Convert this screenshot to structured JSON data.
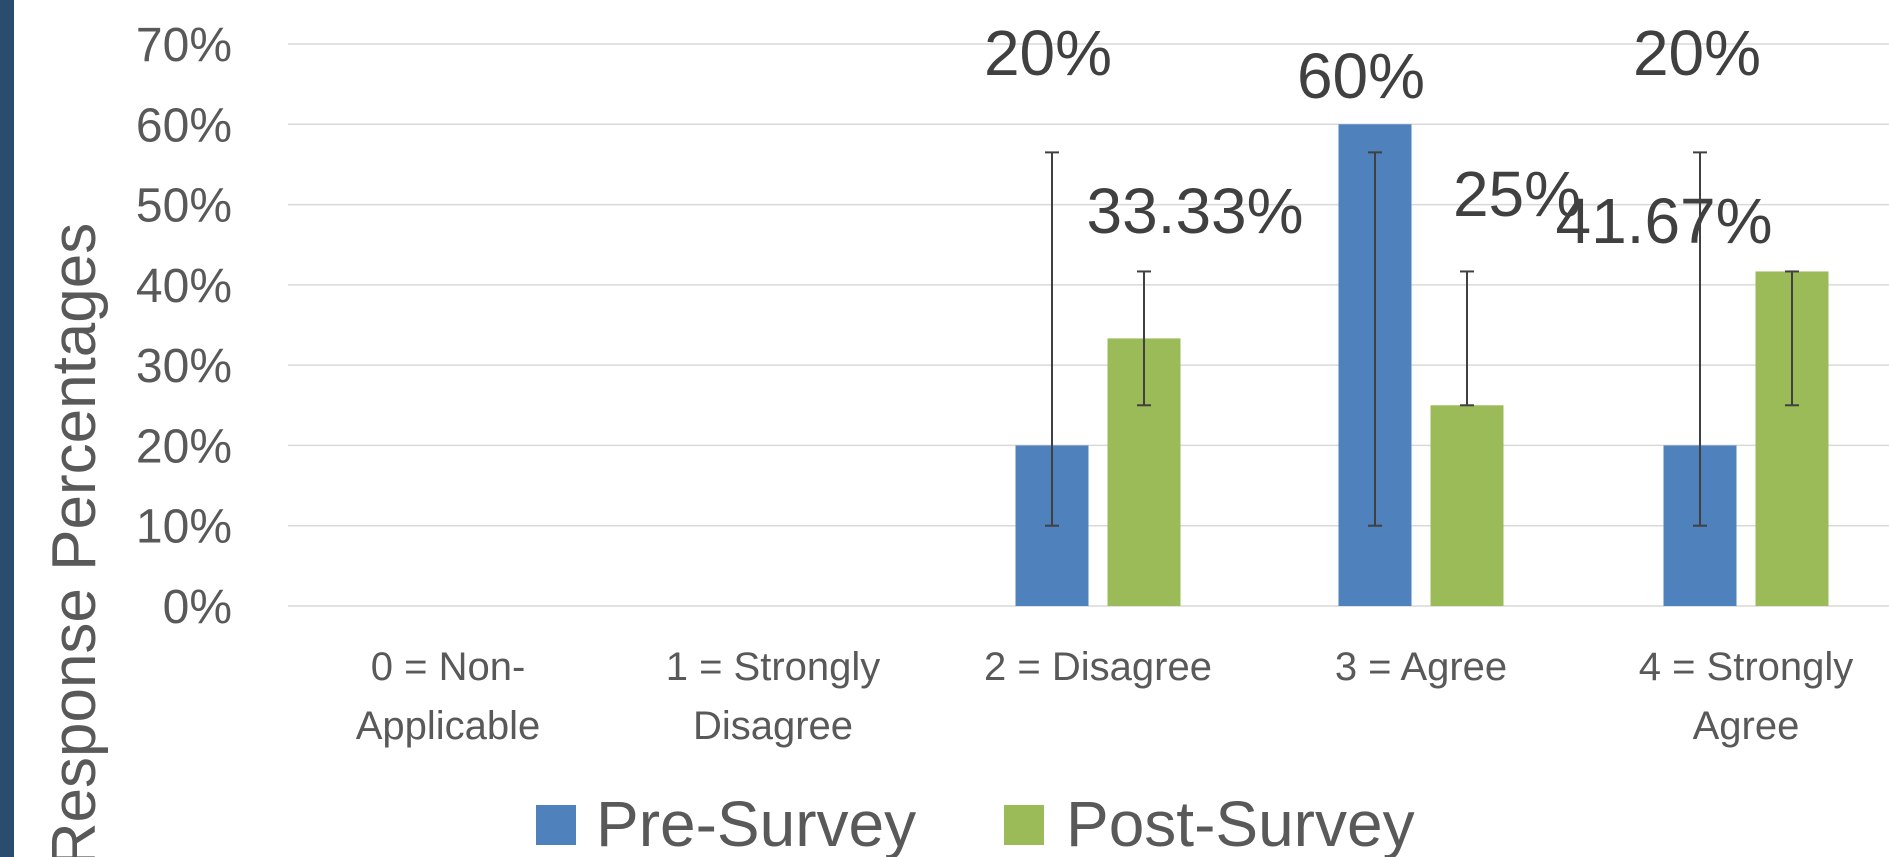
{
  "chart_data": {
    "type": "bar",
    "categories": [
      [
        "0 = Non-",
        "Applicable"
      ],
      [
        "1 = Strongly",
        "Disagree"
      ],
      [
        "2 = Disagree"
      ],
      [
        "3 = Agree"
      ],
      [
        "4 = Strongly",
        "Agree"
      ]
    ],
    "series": [
      {
        "name": "Pre-Survey",
        "color": "#4f81bd",
        "values": [
          null,
          null,
          20,
          60,
          20
        ],
        "labels": [
          null,
          null,
          "20%",
          "60%",
          "20%"
        ],
        "error_bars": [
          null,
          null,
          [
            10,
            56.5
          ],
          [
            10,
            56.5
          ],
          [
            10,
            56.5
          ]
        ]
      },
      {
        "name": "Post-Survey",
        "color": "#9bbb59",
        "values": [
          null,
          null,
          33.33,
          25,
          41.67
        ],
        "labels": [
          null,
          null,
          "33.33%",
          "25%",
          "41.67%"
        ],
        "error_bars": [
          null,
          null,
          [
            25,
            41.67
          ],
          [
            25,
            41.67
          ],
          [
            25,
            41.67
          ]
        ]
      }
    ],
    "ylabel": "Response Percentages",
    "ylim": [
      0,
      70
    ],
    "y_ticks": [
      "0%",
      "10%",
      "20%",
      "30%",
      "40%",
      "50%",
      "60%",
      "70%"
    ],
    "grid": true,
    "legend_position": "bottom",
    "colors": {
      "grid": "#d9d9d9",
      "text": "#595959",
      "left_bar": "#2a4d6e"
    }
  }
}
